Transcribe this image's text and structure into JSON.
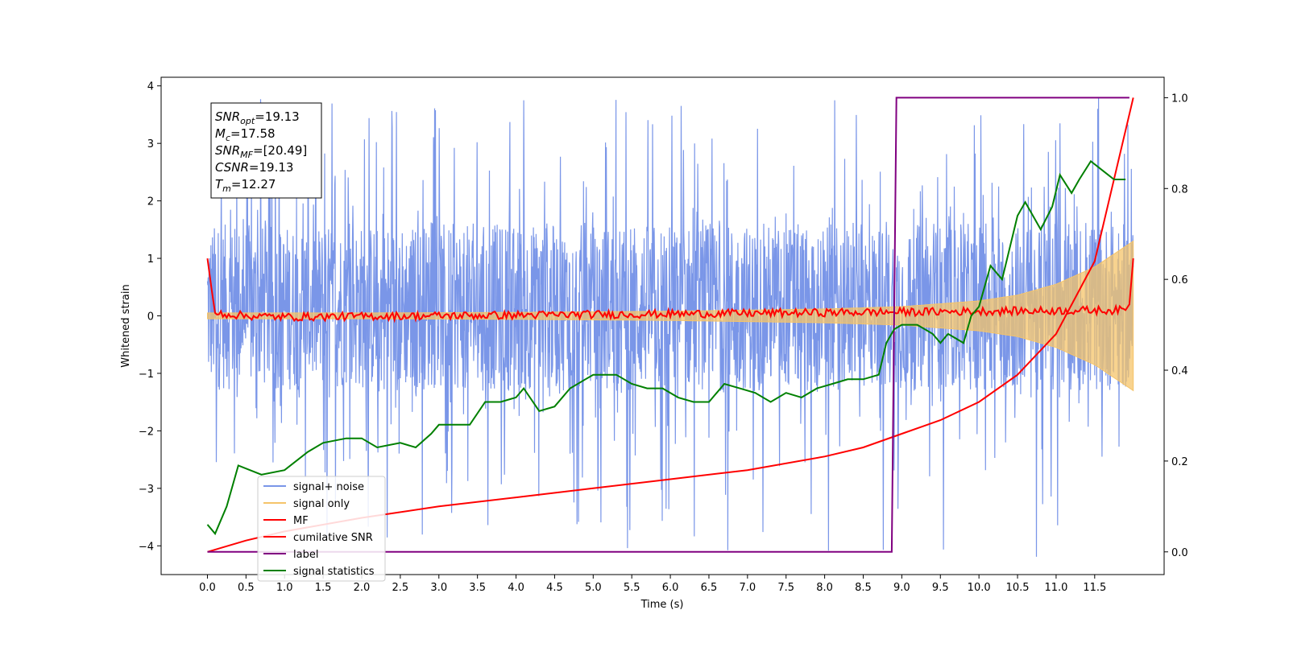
{
  "chart_data": {
    "type": "line",
    "xlabel": "Time (s)",
    "ylabel_left": "Whitened strain",
    "ylabel_right": "",
    "xlim": [
      -0.6,
      12.4
    ],
    "ylim_left": [
      -4.5,
      4.15
    ],
    "ylim_right": [
      -0.05,
      1.045
    ],
    "x_ticks": [
      "0.0",
      "0.5",
      "1.0",
      "1.5",
      "2.0",
      "2.5",
      "3.0",
      "3.5",
      "4.0",
      "4.5",
      "5.0",
      "5.5",
      "6.0",
      "6.5",
      "7.0",
      "7.5",
      "8.0",
      "8.5",
      "9.0",
      "9.5",
      "10.0",
      "10.5",
      "11.0",
      "11.5"
    ],
    "x_tick_values": [
      0.0,
      0.5,
      1.0,
      1.5,
      2.0,
      2.5,
      3.0,
      3.5,
      4.0,
      4.5,
      5.0,
      5.5,
      6.0,
      6.5,
      7.0,
      7.5,
      8.0,
      8.5,
      9.0,
      9.5,
      10.0,
      10.5,
      11.0,
      11.5
    ],
    "y_ticks_left": [
      "4",
      "3",
      "2",
      "1",
      "0",
      "−1",
      "−2",
      "−3",
      "−4"
    ],
    "y_tick_values_left": [
      4,
      3,
      2,
      1,
      0,
      -1,
      -2,
      -3,
      -4
    ],
    "y_ticks_right": [
      "1.0",
      "0.8",
      "0.6",
      "0.4",
      "0.2",
      "0.0"
    ],
    "y_tick_values_right": [
      1.0,
      0.8,
      0.6,
      0.4,
      0.2,
      0.0
    ],
    "grid": false,
    "legend_position": "lower-left",
    "colors": {
      "signal_noise": "#7a96e8",
      "signal_only": "#f5c46a",
      "mf": "#ff0000",
      "cumulative_snr": "#ff0000",
      "label": "#800080",
      "signal_statistics": "#008000"
    },
    "annotation": {
      "lines": [
        {
          "base": "SNR",
          "sub": "opt",
          "rest": "=19.13"
        },
        {
          "base": "M",
          "sub": "c",
          "rest": "=17.58"
        },
        {
          "base": "SNR",
          "sub": "MF",
          "rest": "=[20.49]"
        },
        {
          "base": "CSNR",
          "sub": "",
          "rest": "=19.13"
        },
        {
          "base": "T",
          "sub": "m",
          "rest": "=12.27"
        }
      ]
    },
    "series": [
      {
        "name": "signal+ noise",
        "axis": "left",
        "kind": "noise_band",
        "x_range": [
          0.0,
          12.0
        ],
        "typical_range": [
          -1.3,
          1.6
        ],
        "extreme_range": [
          -4.2,
          3.8
        ]
      },
      {
        "name": "signal only",
        "axis": "left",
        "kind": "chirp_envelope",
        "x": [
          0,
          2,
          4,
          6,
          8,
          9,
          10,
          10.5,
          11,
          11.5,
          12.0
        ],
        "envelope": [
          0.05,
          0.05,
          0.06,
          0.08,
          0.12,
          0.16,
          0.26,
          0.36,
          0.55,
          0.85,
          1.3
        ]
      },
      {
        "name": "MF",
        "axis": "left",
        "kind": "line",
        "x": [
          0.0,
          0.05,
          0.1,
          0.5,
          1.0,
          11.9,
          11.95,
          12.0
        ],
        "y": [
          1.0,
          0.5,
          0.05,
          0.0,
          -0.02,
          0.1,
          0.2,
          1.0
        ]
      },
      {
        "name": "cumilative SNR",
        "axis": "right",
        "kind": "line",
        "x": [
          0.0,
          0.5,
          1.0,
          2.0,
          3.0,
          4.0,
          5.0,
          6.0,
          7.0,
          8.0,
          8.5,
          9.0,
          9.5,
          10.0,
          10.5,
          11.0,
          11.5,
          12.0
        ],
        "y": [
          0.0,
          0.025,
          0.045,
          0.075,
          0.1,
          0.12,
          0.14,
          0.16,
          0.18,
          0.21,
          0.23,
          0.26,
          0.29,
          0.33,
          0.39,
          0.48,
          0.64,
          1.0
        ]
      },
      {
        "name": "label",
        "axis": "right",
        "kind": "line",
        "x": [
          0.0,
          8.87,
          8.93,
          11.95
        ],
        "y": [
          0.0,
          0.0,
          1.0,
          1.0
        ]
      },
      {
        "name": "signal statistics",
        "axis": "right",
        "kind": "line",
        "x": [
          0.0,
          0.1,
          0.25,
          0.4,
          0.7,
          1.0,
          1.3,
          1.5,
          1.8,
          2.0,
          2.2,
          2.5,
          2.7,
          2.9,
          3.0,
          3.2,
          3.4,
          3.6,
          3.8,
          4.0,
          4.1,
          4.3,
          4.5,
          4.7,
          4.9,
          5.0,
          5.2,
          5.3,
          5.5,
          5.7,
          5.9,
          6.1,
          6.3,
          6.5,
          6.7,
          6.9,
          7.1,
          7.3,
          7.5,
          7.7,
          7.9,
          8.1,
          8.3,
          8.5,
          8.7,
          8.8,
          8.9,
          9.0,
          9.2,
          9.4,
          9.5,
          9.6,
          9.7,
          9.8,
          9.9,
          10.0,
          10.15,
          10.3,
          10.5,
          10.6,
          10.8,
          10.95,
          11.05,
          11.2,
          11.3,
          11.45,
          11.6,
          11.75,
          11.9
        ],
        "y": [
          0.06,
          0.04,
          0.1,
          0.19,
          0.17,
          0.18,
          0.22,
          0.24,
          0.25,
          0.25,
          0.23,
          0.24,
          0.23,
          0.26,
          0.28,
          0.28,
          0.28,
          0.33,
          0.33,
          0.34,
          0.36,
          0.31,
          0.32,
          0.36,
          0.38,
          0.39,
          0.39,
          0.39,
          0.37,
          0.36,
          0.36,
          0.34,
          0.33,
          0.33,
          0.37,
          0.36,
          0.35,
          0.33,
          0.35,
          0.34,
          0.36,
          0.37,
          0.38,
          0.38,
          0.39,
          0.46,
          0.49,
          0.5,
          0.5,
          0.48,
          0.46,
          0.48,
          0.47,
          0.46,
          0.52,
          0.54,
          0.63,
          0.6,
          0.74,
          0.77,
          0.71,
          0.76,
          0.83,
          0.79,
          0.82,
          0.86,
          0.84,
          0.82,
          0.82
        ]
      }
    ]
  }
}
